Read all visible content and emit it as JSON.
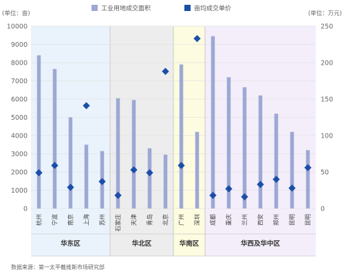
{
  "chart_data": {
    "type": "bar",
    "left_unit": "(单位：亩)",
    "right_unit": "(单位：万元)",
    "legend_position": "top",
    "legend": {
      "bar_label": "工业用地成交面积",
      "marker_label": "亩均成交单价"
    },
    "left_ylim": [
      0,
      10000
    ],
    "left_ticks": [
      "0",
      "1000",
      "2000",
      "3000",
      "4000",
      "5000",
      "6000",
      "7000",
      "8000",
      "9000",
      "10000"
    ],
    "right_ylim": [
      0,
      250
    ],
    "right_ticks": [
      "0",
      "50",
      "100",
      "150",
      "200",
      "250"
    ],
    "categories": [
      "杭州",
      "宁波",
      "南京",
      "上海",
      "苏州",
      "石家庄",
      "天津",
      "青岛",
      "北京",
      "广州",
      "深圳",
      "成都",
      "重庆",
      "兰州",
      "西安",
      "郑州",
      "昆明",
      "昆明"
    ],
    "series": [
      {
        "name": "工业用地成交面积",
        "axis": "left",
        "values": [
          8400,
          7650,
          5000,
          3500,
          3150,
          6050,
          5950,
          3300,
          2950,
          7900,
          4200,
          9450,
          7200,
          6650,
          6200,
          5200,
          4200,
          3200
        ]
      },
      {
        "name": "亩均成交单价",
        "axis": "right",
        "values": [
          49,
          59,
          29,
          141,
          37,
          18,
          53,
          49,
          188,
          59,
          233,
          18,
          27,
          16,
          33,
          40,
          28,
          56
        ]
      }
    ],
    "regions": [
      {
        "label": "华东区",
        "start": 0,
        "end": 4,
        "fill": "#eaf3fb"
      },
      {
        "label": "华北区",
        "start": 5,
        "end": 8,
        "fill": "#ededed"
      },
      {
        "label": "华南区",
        "start": 9,
        "end": 10,
        "fill": "#fdfce0"
      },
      {
        "label": "华西及华中区",
        "start": 11,
        "end": 17,
        "fill": "#f4eefb"
      }
    ],
    "colors": {
      "bar": "#9ea8d4",
      "marker": "#1a4fa8",
      "grid": "#e2e2e2",
      "axis_text": "#666666"
    },
    "source": "数据来源：第一太平戴维斯市场研究部"
  }
}
